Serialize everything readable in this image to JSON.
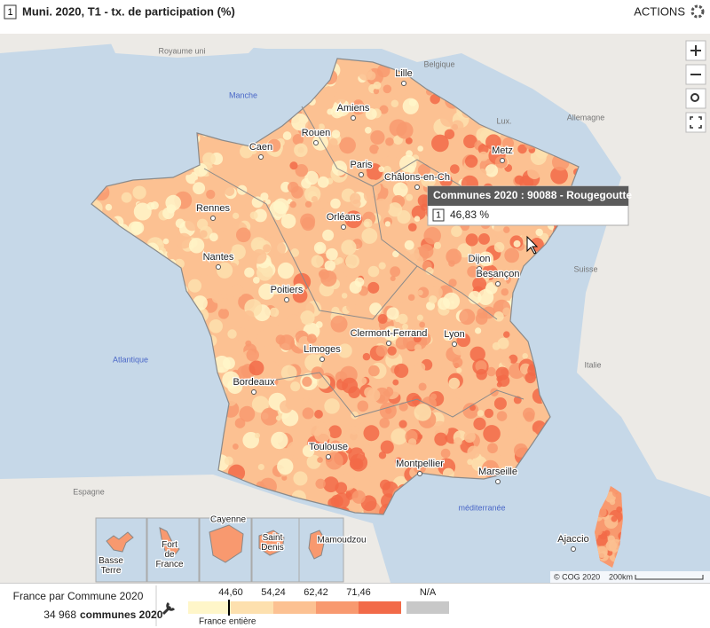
{
  "header": {
    "layer_badge": "1",
    "title": "Muni. 2020, T1 - tx. de participation (%)",
    "actions": "ACTIONS"
  },
  "map": {
    "countries": [
      "Royaume uni",
      "Belgique",
      "Lux.",
      "Allemagne",
      "Suisse",
      "Italie",
      "Espagne"
    ],
    "seas": [
      "Manche",
      "Atlantique",
      "méditerranée"
    ],
    "cities": [
      "Lille",
      "Amiens",
      "Rouen",
      "Caen",
      "Paris",
      "Metz",
      "Châlons-en-Ch",
      "Rennes",
      "Orléans",
      "Nantes",
      "Dijon",
      "Besançon",
      "Poitiers",
      "Clermont-Ferrand",
      "Lyon",
      "Limoges",
      "Bordeaux",
      "Toulouse",
      "Montpellier",
      "Marseille",
      "Ajaccio"
    ],
    "insets": [
      "Basse Terre",
      "Fort de France",
      "Cayenne",
      "Saint Denis",
      "Mamoudzou"
    ],
    "attribution": "© COG 2020",
    "scale": "200km"
  },
  "tooltip": {
    "title": "Communes 2020 : 90088 - Rougegoutte",
    "badge": "1",
    "value": "46,83 %"
  },
  "footer": {
    "level": "France par Commune 2020",
    "count": "34 968",
    "count_unit": "communes 2020"
  },
  "legend": {
    "breaks": [
      "44,60",
      "54,24",
      "62,42",
      "71,46"
    ],
    "colors": [
      "#fff6c9",
      "#fde0ae",
      "#fcc192",
      "#f8996f",
      "#f26a48"
    ],
    "na_label": "N/A",
    "na_color": "#c8c8c8",
    "national_label": "France entière"
  }
}
